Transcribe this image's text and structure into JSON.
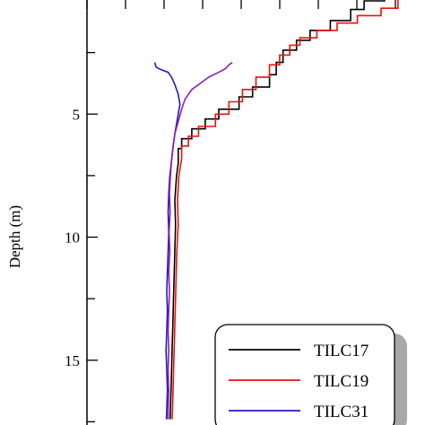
{
  "chart_data": {
    "type": "line",
    "title": "",
    "xlabel": "",
    "ylabel": "Depth (m)",
    "y_inverted": true,
    "ylim": [
      0,
      17.4
    ],
    "y_ticks": [
      5,
      10,
      15
    ],
    "y_minor_ticks": [
      2.5,
      7.5,
      12.5,
      17.5
    ],
    "grid": false,
    "legend": "bottom-right",
    "series": [
      {
        "name": "TILC17",
        "color": "#000000",
        "points": [
          [
            0.88,
            0.0
          ],
          [
            0.88,
            0.4
          ],
          [
            0.82,
            0.4
          ],
          [
            0.82,
            0.75
          ],
          [
            0.78,
            0.75
          ],
          [
            0.78,
            1.2
          ],
          [
            0.72,
            1.2
          ],
          [
            0.72,
            1.6
          ],
          [
            0.66,
            1.6
          ],
          [
            0.66,
            2.0
          ],
          [
            0.62,
            2.0
          ],
          [
            0.62,
            2.4
          ],
          [
            0.58,
            2.4
          ],
          [
            0.58,
            2.9
          ],
          [
            0.56,
            2.9
          ],
          [
            0.56,
            3.4
          ],
          [
            0.54,
            3.4
          ],
          [
            0.54,
            3.9
          ],
          [
            0.49,
            3.9
          ],
          [
            0.49,
            4.3
          ],
          [
            0.45,
            4.3
          ],
          [
            0.45,
            4.8
          ],
          [
            0.39,
            4.8
          ],
          [
            0.39,
            5.2
          ],
          [
            0.35,
            5.2
          ],
          [
            0.35,
            5.6
          ],
          [
            0.31,
            5.6
          ],
          [
            0.31,
            6.0
          ],
          [
            0.28,
            6.0
          ],
          [
            0.28,
            6.4
          ],
          [
            0.27,
            6.4
          ],
          [
            0.27,
            7.0
          ],
          [
            0.265,
            7.5
          ],
          [
            0.26,
            8.5
          ],
          [
            0.262,
            9.5
          ],
          [
            0.26,
            10.5
          ],
          [
            0.258,
            11.5
          ],
          [
            0.256,
            12.5
          ],
          [
            0.254,
            13.5
          ],
          [
            0.252,
            14.5
          ],
          [
            0.25,
            15.5
          ],
          [
            0.248,
            16.5
          ],
          [
            0.246,
            17.4
          ]
        ]
      },
      {
        "name": "TILC19",
        "color": "#e8120c",
        "points": [
          [
            0.96,
            0.0
          ],
          [
            0.96,
            0.3
          ],
          [
            0.92,
            0.3
          ],
          [
            0.92,
            0.7
          ],
          [
            0.87,
            0.7
          ],
          [
            0.87,
            1.0
          ],
          [
            0.8,
            1.0
          ],
          [
            0.8,
            1.3
          ],
          [
            0.74,
            1.3
          ],
          [
            0.74,
            1.6
          ],
          [
            0.68,
            1.6
          ],
          [
            0.68,
            1.9
          ],
          [
            0.63,
            1.9
          ],
          [
            0.63,
            2.2
          ],
          [
            0.6,
            2.2
          ],
          [
            0.6,
            2.6
          ],
          [
            0.57,
            2.6
          ],
          [
            0.57,
            3.0
          ],
          [
            0.54,
            3.0
          ],
          [
            0.54,
            3.5
          ],
          [
            0.5,
            3.5
          ],
          [
            0.5,
            4.0
          ],
          [
            0.46,
            4.0
          ],
          [
            0.46,
            4.5
          ],
          [
            0.42,
            4.5
          ],
          [
            0.42,
            5.0
          ],
          [
            0.38,
            5.0
          ],
          [
            0.38,
            5.5
          ],
          [
            0.33,
            5.5
          ],
          [
            0.33,
            5.9
          ],
          [
            0.3,
            5.9
          ],
          [
            0.3,
            6.3
          ],
          [
            0.28,
            6.3
          ],
          [
            0.28,
            6.8
          ],
          [
            0.272,
            7.5
          ],
          [
            0.268,
            8.5
          ],
          [
            0.27,
            9.5
          ],
          [
            0.266,
            10.5
          ],
          [
            0.264,
            11.5
          ],
          [
            0.262,
            12.5
          ],
          [
            0.26,
            13.5
          ],
          [
            0.258,
            14.5
          ],
          [
            0.256,
            15.5
          ],
          [
            0.254,
            16.5
          ],
          [
            0.252,
            17.4
          ]
        ]
      },
      {
        "name": "TILC31",
        "color": "#1f17c8",
        "points": [
          [
            0.2,
            2.9
          ],
          [
            0.205,
            3.1
          ],
          [
            0.22,
            3.2
          ],
          [
            0.24,
            3.3
          ],
          [
            0.25,
            3.5
          ],
          [
            0.26,
            3.8
          ],
          [
            0.27,
            4.2
          ],
          [
            0.275,
            4.6
          ],
          [
            0.27,
            5.0
          ],
          [
            0.265,
            5.4
          ],
          [
            0.26,
            5.8
          ],
          [
            0.255,
            6.3
          ],
          [
            0.25,
            6.9
          ],
          [
            0.245,
            7.5
          ],
          [
            0.242,
            8.2
          ],
          [
            0.24,
            9.0
          ],
          [
            0.242,
            9.8
          ],
          [
            0.24,
            10.6
          ],
          [
            0.238,
            11.4
          ],
          [
            0.236,
            12.2
          ],
          [
            0.238,
            13.0
          ],
          [
            0.236,
            13.8
          ],
          [
            0.234,
            14.6
          ],
          [
            0.236,
            15.4
          ],
          [
            0.238,
            16.2
          ],
          [
            0.236,
            17.0
          ],
          [
            0.235,
            17.4
          ]
        ]
      },
      {
        "name": "",
        "color": "#8a1fb0",
        "points": [
          [
            0.43,
            2.9
          ],
          [
            0.42,
            3.0
          ],
          [
            0.41,
            3.15
          ],
          [
            0.39,
            3.3
          ],
          [
            0.36,
            3.5
          ],
          [
            0.34,
            3.7
          ],
          [
            0.31,
            4.0
          ],
          [
            0.29,
            4.4
          ],
          [
            0.28,
            4.8
          ],
          [
            0.27,
            5.3
          ],
          [
            0.26,
            5.8
          ],
          [
            0.255,
            6.3
          ],
          [
            0.25,
            6.9
          ],
          [
            0.247,
            7.5
          ],
          [
            0.244,
            8.2
          ],
          [
            0.246,
            9.0
          ],
          [
            0.243,
            9.8
          ],
          [
            0.245,
            10.6
          ],
          [
            0.242,
            11.4
          ],
          [
            0.244,
            12.2
          ],
          [
            0.242,
            13.0
          ],
          [
            0.24,
            13.8
          ],
          [
            0.242,
            14.6
          ],
          [
            0.24,
            15.4
          ],
          [
            0.242,
            16.2
          ],
          [
            0.24,
            17.0
          ],
          [
            0.24,
            17.4
          ]
        ]
      }
    ],
    "legend_entries": [
      "TILC17",
      "TILC19",
      "TILC31"
    ]
  }
}
